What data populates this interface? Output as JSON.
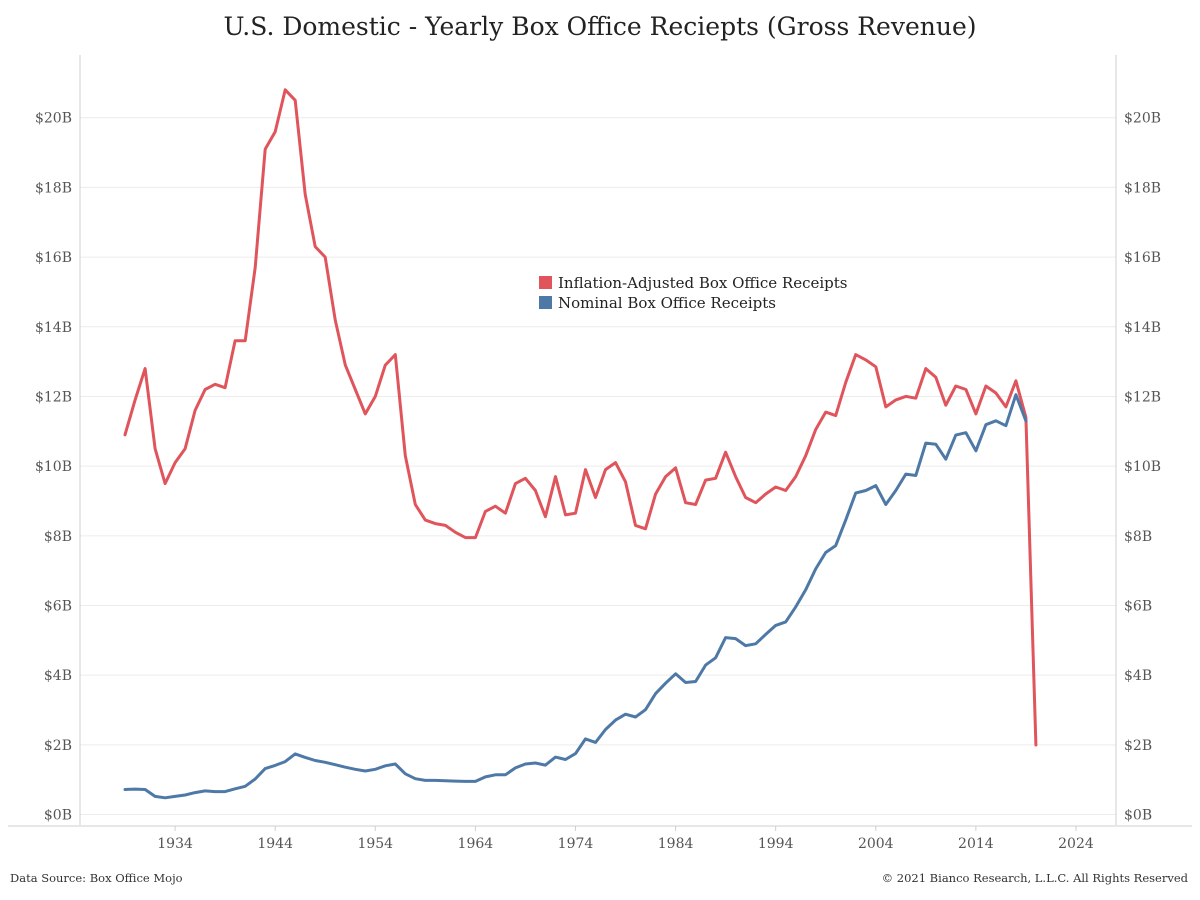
{
  "chart_data": {
    "type": "line",
    "title": "U.S. Domestic - Yearly Box Office Reciepts (Gross Revenue)",
    "xlabel": "",
    "ylabel": "",
    "xlim": [
      1924.5,
      2028
    ],
    "ylim": [
      -0.3,
      21.8
    ],
    "x_ticks": [
      1934,
      1944,
      1954,
      1964,
      1974,
      1984,
      1994,
      2004,
      2014,
      2024
    ],
    "x_tick_labels": [
      "1934",
      "1944",
      "1954",
      "1964",
      "1974",
      "1984",
      "1994",
      "2004",
      "2014",
      "2024"
    ],
    "y_ticks": [
      0,
      2,
      4,
      6,
      8,
      10,
      12,
      14,
      16,
      18,
      20
    ],
    "y_tick_labels": [
      "$0B",
      "$2B",
      "$4B",
      "$6B",
      "$8B",
      "$10B",
      "$12B",
      "$14B",
      "$16B",
      "$18B",
      "$20B"
    ],
    "legend_position": "center",
    "grid": true,
    "series": [
      {
        "name": "Inflation-Adjusted Box Office Receipts",
        "color": "#e0545c",
        "points": [
          [
            1929,
            10.9
          ],
          [
            1930,
            11.9
          ],
          [
            1931,
            12.8
          ],
          [
            1932,
            10.5
          ],
          [
            1933,
            9.5
          ],
          [
            1934,
            10.1
          ],
          [
            1935,
            10.5
          ],
          [
            1936,
            11.6
          ],
          [
            1937,
            12.2
          ],
          [
            1938,
            12.35
          ],
          [
            1939,
            12.25
          ],
          [
            1940,
            13.6
          ],
          [
            1941,
            13.6
          ],
          [
            1942,
            15.7
          ],
          [
            1943,
            19.1
          ],
          [
            1944,
            19.6
          ],
          [
            1945,
            20.8
          ],
          [
            1946,
            20.5
          ],
          [
            1947,
            17.8
          ],
          [
            1948,
            16.3
          ],
          [
            1949,
            16.0
          ],
          [
            1950,
            14.2
          ],
          [
            1951,
            12.9
          ],
          [
            1952,
            12.2
          ],
          [
            1953,
            11.5
          ],
          [
            1954,
            12.0
          ],
          [
            1955,
            12.9
          ],
          [
            1956,
            13.2
          ],
          [
            1957,
            10.3
          ],
          [
            1958,
            8.9
          ],
          [
            1959,
            8.45
          ],
          [
            1960,
            8.35
          ],
          [
            1961,
            8.3
          ],
          [
            1962,
            8.1
          ],
          [
            1963,
            7.95
          ],
          [
            1964,
            7.95
          ],
          [
            1965,
            8.7
          ],
          [
            1966,
            8.85
          ],
          [
            1967,
            8.65
          ],
          [
            1968,
            9.5
          ],
          [
            1969,
            9.65
          ],
          [
            1970,
            9.3
          ],
          [
            1971,
            8.55
          ],
          [
            1972,
            9.7
          ],
          [
            1973,
            8.6
          ],
          [
            1974,
            8.65
          ],
          [
            1975,
            9.9
          ],
          [
            1976,
            9.1
          ],
          [
            1977,
            9.9
          ],
          [
            1978,
            10.1
          ],
          [
            1979,
            9.55
          ],
          [
            1980,
            8.3
          ],
          [
            1981,
            8.2
          ],
          [
            1982,
            9.2
          ],
          [
            1983,
            9.7
          ],
          [
            1984,
            9.95
          ],
          [
            1985,
            8.95
          ],
          [
            1986,
            8.9
          ],
          [
            1987,
            9.6
          ],
          [
            1988,
            9.65
          ],
          [
            1989,
            10.4
          ],
          [
            1990,
            9.7
          ],
          [
            1991,
            9.1
          ],
          [
            1992,
            8.95
          ],
          [
            1993,
            9.2
          ],
          [
            1994,
            9.4
          ],
          [
            1995,
            9.3
          ],
          [
            1996,
            9.7
          ],
          [
            1997,
            10.3
          ],
          [
            1998,
            11.05
          ],
          [
            1999,
            11.55
          ],
          [
            2000,
            11.45
          ],
          [
            2001,
            12.4
          ],
          [
            2002,
            13.2
          ],
          [
            2003,
            13.05
          ],
          [
            2004,
            12.85
          ],
          [
            2005,
            11.7
          ],
          [
            2006,
            11.9
          ],
          [
            2007,
            12.0
          ],
          [
            2008,
            11.95
          ],
          [
            2009,
            12.8
          ],
          [
            2010,
            12.55
          ],
          [
            2011,
            11.75
          ],
          [
            2012,
            12.3
          ],
          [
            2013,
            12.2
          ],
          [
            2014,
            11.5
          ],
          [
            2015,
            12.3
          ],
          [
            2016,
            12.1
          ],
          [
            2017,
            11.7
          ],
          [
            2018,
            12.45
          ],
          [
            2019,
            11.4
          ],
          [
            2020,
            2.0
          ]
        ]
      },
      {
        "name": "Nominal Box Office Receipts",
        "color": "#4e79a7",
        "points": [
          [
            1929,
            0.72
          ],
          [
            1930,
            0.73
          ],
          [
            1931,
            0.72
          ],
          [
            1932,
            0.52
          ],
          [
            1933,
            0.48
          ],
          [
            1934,
            0.52
          ],
          [
            1935,
            0.56
          ],
          [
            1936,
            0.63
          ],
          [
            1937,
            0.68
          ],
          [
            1938,
            0.66
          ],
          [
            1939,
            0.66
          ],
          [
            1940,
            0.74
          ],
          [
            1941,
            0.81
          ],
          [
            1942,
            1.02
          ],
          [
            1943,
            1.32
          ],
          [
            1944,
            1.41
          ],
          [
            1945,
            1.52
          ],
          [
            1946,
            1.74
          ],
          [
            1947,
            1.64
          ],
          [
            1948,
            1.55
          ],
          [
            1949,
            1.5
          ],
          [
            1950,
            1.43
          ],
          [
            1951,
            1.36
          ],
          [
            1952,
            1.3
          ],
          [
            1953,
            1.25
          ],
          [
            1954,
            1.3
          ],
          [
            1955,
            1.4
          ],
          [
            1956,
            1.45
          ],
          [
            1957,
            1.17
          ],
          [
            1958,
            1.03
          ],
          [
            1959,
            0.98
          ],
          [
            1960,
            0.98
          ],
          [
            1961,
            0.97
          ],
          [
            1962,
            0.96
          ],
          [
            1963,
            0.95
          ],
          [
            1964,
            0.95
          ],
          [
            1965,
            1.08
          ],
          [
            1966,
            1.14
          ],
          [
            1967,
            1.14
          ],
          [
            1968,
            1.34
          ],
          [
            1969,
            1.45
          ],
          [
            1970,
            1.48
          ],
          [
            1971,
            1.42
          ],
          [
            1972,
            1.65
          ],
          [
            1973,
            1.58
          ],
          [
            1974,
            1.75
          ],
          [
            1975,
            2.17
          ],
          [
            1976,
            2.07
          ],
          [
            1977,
            2.44
          ],
          [
            1978,
            2.71
          ],
          [
            1979,
            2.88
          ],
          [
            1980,
            2.8
          ],
          [
            1981,
            3.01
          ],
          [
            1982,
            3.47
          ],
          [
            1983,
            3.77
          ],
          [
            1984,
            4.04
          ],
          [
            1985,
            3.79
          ],
          [
            1986,
            3.82
          ],
          [
            1987,
            4.29
          ],
          [
            1988,
            4.5
          ],
          [
            1989,
            5.08
          ],
          [
            1990,
            5.05
          ],
          [
            1991,
            4.85
          ],
          [
            1992,
            4.9
          ],
          [
            1993,
            5.17
          ],
          [
            1994,
            5.43
          ],
          [
            1995,
            5.53
          ],
          [
            1996,
            5.96
          ],
          [
            1997,
            6.45
          ],
          [
            1998,
            7.05
          ],
          [
            1999,
            7.52
          ],
          [
            2000,
            7.72
          ],
          [
            2001,
            8.45
          ],
          [
            2002,
            9.23
          ],
          [
            2003,
            9.3
          ],
          [
            2004,
            9.44
          ],
          [
            2005,
            8.9
          ],
          [
            2006,
            9.3
          ],
          [
            2007,
            9.77
          ],
          [
            2008,
            9.73
          ],
          [
            2009,
            10.66
          ],
          [
            2010,
            10.63
          ],
          [
            2011,
            10.2
          ],
          [
            2012,
            10.89
          ],
          [
            2013,
            10.96
          ],
          [
            2014,
            10.44
          ],
          [
            2015,
            11.19
          ],
          [
            2016,
            11.3
          ],
          [
            2017,
            11.16
          ],
          [
            2018,
            12.05
          ],
          [
            2019,
            11.3
          ]
        ]
      }
    ]
  },
  "footer": {
    "source": "Data Source: Box Office Mojo",
    "copyright": "© 2021 Bianco Research, L.L.C. All Rights Reserved"
  }
}
